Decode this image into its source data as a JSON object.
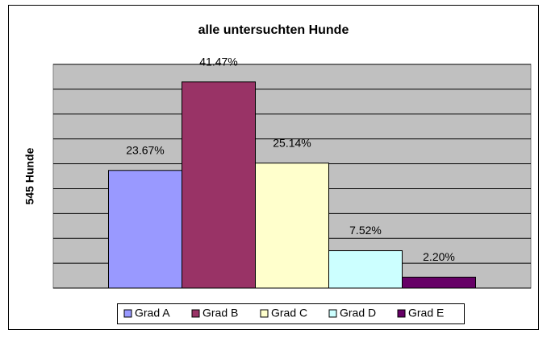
{
  "chart_data": {
    "type": "bar",
    "title": "alle untersuchten Hunde",
    "y_label": "545 Hunde",
    "series": [
      {
        "name": "Grad A",
        "color": "#9999ff",
        "values": [
          23.67
        ],
        "value_labels": [
          "23.67%"
        ]
      },
      {
        "name": "Grad B",
        "color": "#993366",
        "values": [
          41.47
        ],
        "value_labels": [
          "41.47%"
        ]
      },
      {
        "name": "Grad C",
        "color": "#ffffcc",
        "values": [
          25.14
        ],
        "value_labels": [
          "25.14%"
        ]
      },
      {
        "name": "Grad D",
        "color": "#ccffff",
        "values": [
          7.52
        ],
        "value_labels": [
          "7.52%"
        ]
      },
      {
        "name": "Grad E",
        "color": "#660066",
        "values": [
          2.2
        ],
        "value_labels": [
          "2.20%"
        ]
      }
    ],
    "ylim": [
      0,
      45
    ],
    "yticks": [
      0,
      5,
      10,
      15,
      20,
      25,
      30,
      35,
      40,
      45
    ],
    "grid": true,
    "legend": "bottom"
  }
}
